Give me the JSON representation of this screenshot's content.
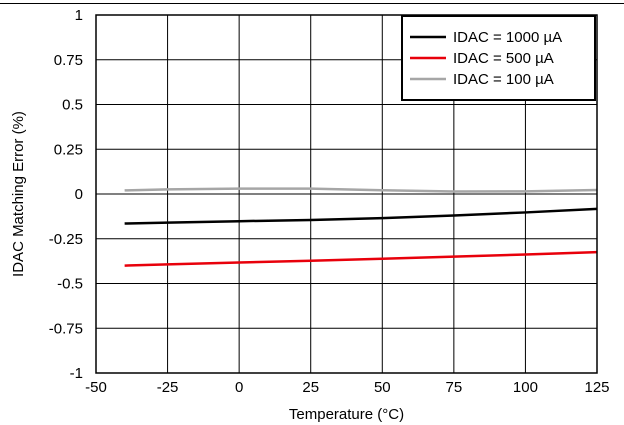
{
  "chart_data": {
    "type": "line",
    "xlabel": "Temperature (°C)",
    "ylabel": "IDAC Matching Error (%)",
    "xlim": [
      -50,
      125
    ],
    "ylim": [
      -1,
      1
    ],
    "x_ticks": [
      "-50",
      "-25",
      "0",
      "25",
      "50",
      "75",
      "100",
      "125"
    ],
    "y_ticks": [
      "1",
      "0.75",
      "0.5",
      "0.25",
      "0",
      "-0.25",
      "-0.5",
      "-0.75",
      "-1"
    ],
    "grid": true,
    "legend_position": "top-right",
    "series": [
      {
        "name": "IDAC = 1000 µA",
        "color": "#000000",
        "x": [
          -40,
          -25,
          0,
          25,
          50,
          75,
          100,
          125
        ],
        "y": [
          -0.165,
          -0.16,
          -0.152,
          -0.145,
          -0.135,
          -0.12,
          -0.103,
          -0.083
        ]
      },
      {
        "name": "IDAC = 500 µA",
        "color": "#e8000b",
        "x": [
          -40,
          -25,
          0,
          25,
          50,
          75,
          100,
          125
        ],
        "y": [
          -0.4,
          -0.393,
          -0.383,
          -0.373,
          -0.362,
          -0.35,
          -0.338,
          -0.325
        ]
      },
      {
        "name": "IDAC = 100 µA",
        "color": "#a6a6a6",
        "x": [
          -40,
          -25,
          0,
          25,
          50,
          75,
          100,
          125
        ],
        "y": [
          0.02,
          0.026,
          0.03,
          0.03,
          0.021,
          0.014,
          0.015,
          0.022
        ]
      }
    ]
  }
}
